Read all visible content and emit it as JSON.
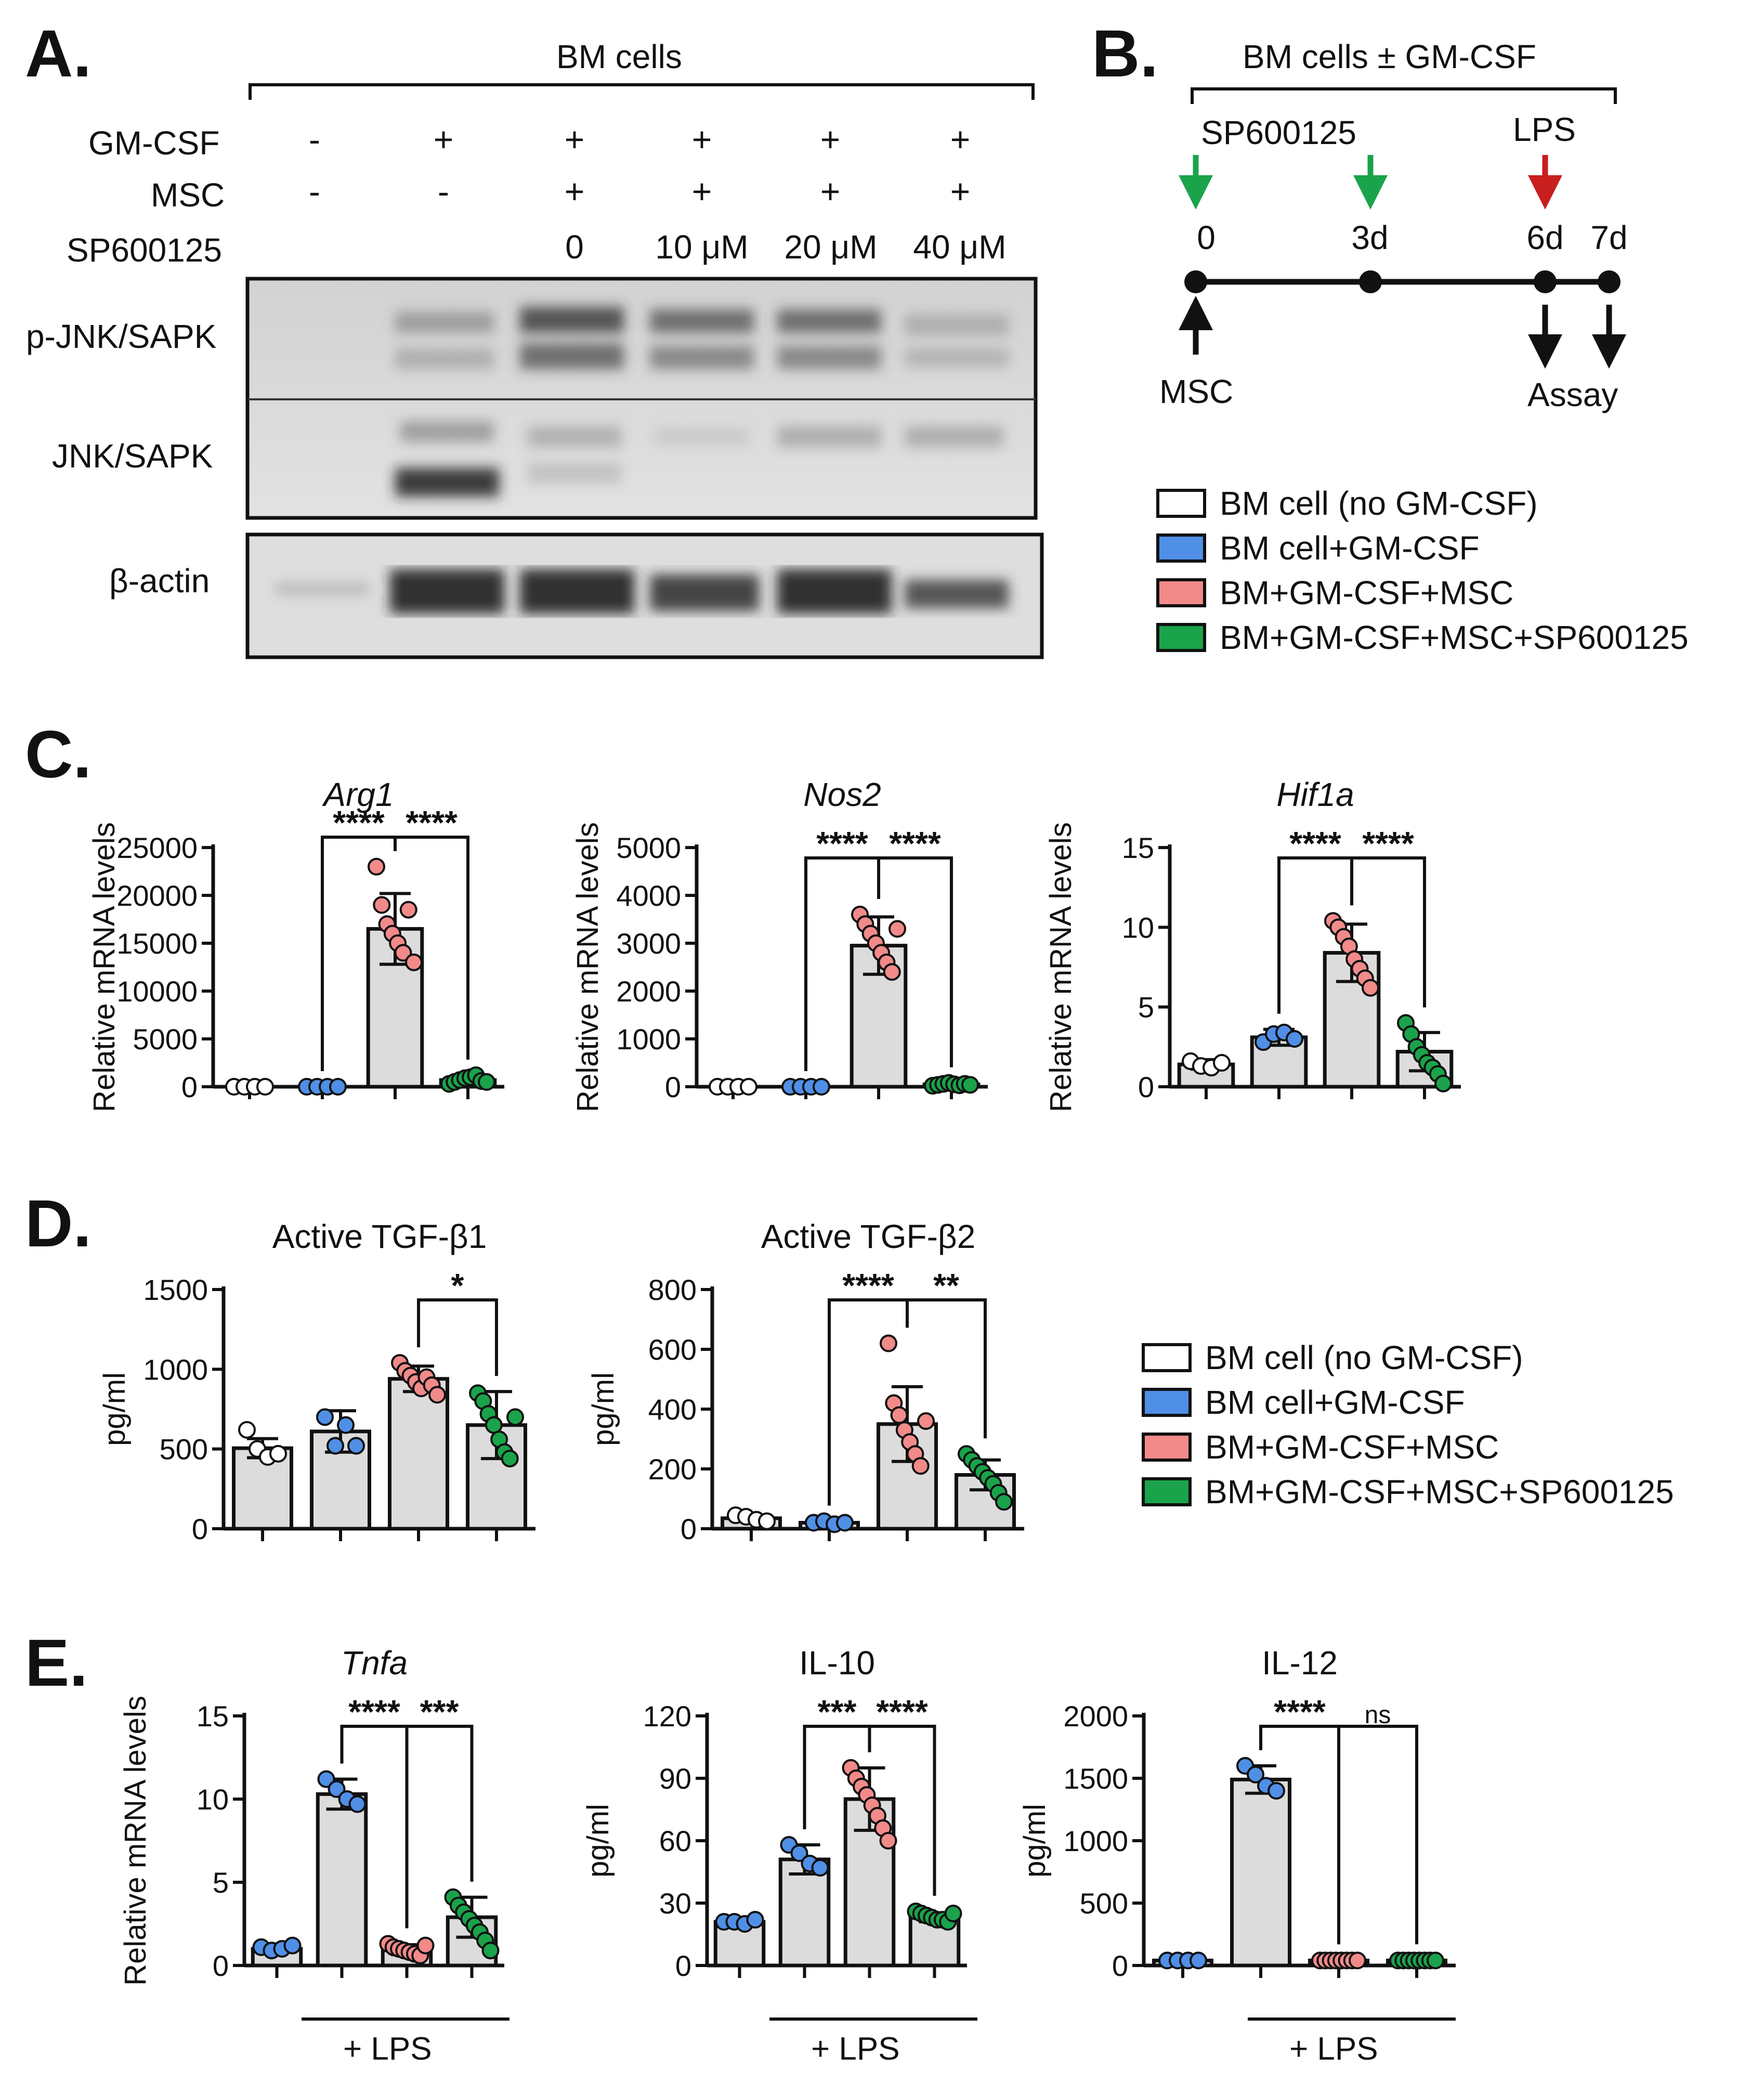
{
  "colors": {
    "group1": "#ffffff",
    "group2": "#4f8fe6",
    "group3": "#f28a8a",
    "group4": "#1aa34a",
    "bar_fill": "#dcdcdc",
    "arrow_green": "#1aa34a",
    "arrow_red": "#c81e1e"
  },
  "panel_a": {
    "label": "A.",
    "header": "BM cells",
    "rows": [
      {
        "name": "GM-CSF",
        "values": [
          "-",
          "+",
          "+",
          "+",
          "+",
          "+"
        ]
      },
      {
        "name": "MSC",
        "values": [
          "-",
          "-",
          "+",
          "+",
          "+",
          "+"
        ]
      },
      {
        "name": "SP600125",
        "values": [
          "",
          "",
          "0",
          "10 μM",
          "20 μM",
          "40 μM"
        ]
      }
    ],
    "blot_labels": [
      "p-JNK/SAPK",
      "JNK/SAPK",
      "β-actin"
    ]
  },
  "panel_b": {
    "label": "B.",
    "header": "BM cells ± GM-CSF",
    "sp_label": "SP600125",
    "lps_label": "LPS",
    "timepoints": [
      "0",
      "3d",
      "6d",
      "7d"
    ],
    "msc_label": "MSC",
    "assay_label": "Assay"
  },
  "legend": [
    "BM cell (no GM-CSF)",
    "BM cell+GM-CSF",
    "BM+GM-CSF+MSC",
    "BM+GM-CSF+MSC+SP600125"
  ],
  "panel_c": {
    "label": "C."
  },
  "panel_d": {
    "label": "D."
  },
  "panel_e": {
    "label": "E.",
    "lps_label": "+ LPS"
  },
  "chart_data": [
    {
      "id": "arg1",
      "type": "bar",
      "title": "Arg1",
      "title_italic": true,
      "ylabel": "Relative mRNA levels",
      "ylim": [
        0,
        25000
      ],
      "yticks": [
        0,
        5000,
        10000,
        15000,
        20000,
        25000
      ],
      "groups": [
        1,
        2,
        3,
        4
      ],
      "values": [
        0,
        0,
        16500,
        700
      ],
      "sd": [
        0,
        0,
        3700,
        300
      ],
      "points": [
        [
          0,
          0,
          0,
          0
        ],
        [
          0,
          0,
          0,
          0
        ],
        [
          23000,
          19000,
          17000,
          16000,
          15000,
          14000,
          18500,
          13000
        ],
        [
          300,
          500,
          700,
          900,
          1000,
          1200,
          600,
          500
        ]
      ],
      "sig": [
        {
          "from": 2,
          "to": 3,
          "label": "****"
        },
        {
          "from": 3,
          "to": 4,
          "label": "****"
        }
      ]
    },
    {
      "id": "nos2",
      "type": "bar",
      "title": "Nos2",
      "title_italic": true,
      "ylabel": "Relative mRNA levels",
      "ylim": [
        0,
        5000
      ],
      "yticks": [
        0,
        1000,
        2000,
        3000,
        4000,
        5000
      ],
      "groups": [
        1,
        2,
        3,
        4
      ],
      "values": [
        0,
        0,
        2950,
        50
      ],
      "sd": [
        0,
        0,
        600,
        30
      ],
      "points": [
        [
          0,
          0,
          0,
          0
        ],
        [
          0,
          0,
          0,
          0
        ],
        [
          3600,
          3400,
          3200,
          3000,
          2800,
          2600,
          2400,
          3300
        ],
        [
          20,
          40,
          60,
          80,
          50,
          30,
          60,
          40
        ]
      ],
      "sig": [
        {
          "from": 2,
          "to": 3,
          "label": "****"
        },
        {
          "from": 3,
          "to": 4,
          "label": "****"
        }
      ]
    },
    {
      "id": "hif1a",
      "type": "bar",
      "title": "Hif1a",
      "title_italic": true,
      "ylabel": "Relative mRNA levels",
      "ylim": [
        0,
        15
      ],
      "yticks": [
        0,
        5,
        10,
        15
      ],
      "groups": [
        1,
        2,
        3,
        4
      ],
      "values": [
        1.4,
        3.1,
        8.4,
        2.2
      ],
      "sd": [
        0.3,
        0.5,
        1.8,
        1.2
      ],
      "points": [
        [
          1.6,
          1.3,
          1.2,
          1.5
        ],
        [
          2.8,
          3.3,
          3.4,
          3.0
        ],
        [
          10.4,
          10.0,
          9.4,
          8.8,
          8.0,
          7.4,
          6.8,
          6.2
        ],
        [
          4.0,
          3.3,
          2.5,
          2.0,
          1.5,
          1.2,
          0.8,
          0.2
        ]
      ],
      "sig": [
        {
          "from": 2,
          "to": 3,
          "label": "****"
        },
        {
          "from": 3,
          "to": 4,
          "label": "****"
        }
      ]
    },
    {
      "id": "tgfb1",
      "type": "bar",
      "title": "Active TGF-β1",
      "title_italic": false,
      "ylabel": "pg/ml",
      "ylim": [
        0,
        1500
      ],
      "yticks": [
        0,
        500,
        1000,
        1500
      ],
      "groups": [
        1,
        2,
        3,
        4
      ],
      "values": [
        505,
        610,
        940,
        650
      ],
      "sd": [
        60,
        130,
        80,
        210
      ],
      "points": [
        [
          620,
          500,
          450,
          470
        ],
        [
          700,
          520,
          650,
          520
        ],
        [
          1040,
          990,
          960,
          920,
          880,
          950,
          900,
          840
        ],
        [
          850,
          800,
          720,
          650,
          560,
          480,
          440,
          700
        ]
      ],
      "sig": [
        {
          "from": 3,
          "to": 4,
          "label": "*"
        }
      ]
    },
    {
      "id": "tgfb2",
      "type": "bar",
      "title": "Active TGF-β2",
      "title_italic": false,
      "ylabel": "pg/ml",
      "ylim": [
        0,
        800
      ],
      "yticks": [
        0,
        200,
        400,
        600,
        800
      ],
      "groups": [
        1,
        2,
        3,
        4
      ],
      "values": [
        35,
        20,
        350,
        180
      ],
      "sd": [
        10,
        5,
        125,
        50
      ],
      "points": [
        [
          45,
          40,
          30,
          25
        ],
        [
          20,
          25,
          15,
          20
        ],
        [
          620,
          420,
          380,
          330,
          290,
          250,
          210,
          360
        ],
        [
          250,
          230,
          210,
          190,
          170,
          150,
          120,
          90
        ]
      ],
      "sig": [
        {
          "from": 2,
          "to": 3,
          "label": "****"
        },
        {
          "from": 3,
          "to": 4,
          "label": "**"
        }
      ]
    },
    {
      "id": "tnfa",
      "type": "bar",
      "title": "Tnfa",
      "title_italic": true,
      "ylabel": "Relative mRNA levels",
      "ylim": [
        0,
        15
      ],
      "yticks": [
        0,
        5,
        10,
        15
      ],
      "groups": [
        2,
        2,
        3,
        4
      ],
      "values": [
        1.0,
        10.3,
        0.95,
        2.9
      ],
      "sd": [
        0.2,
        0.9,
        0.3,
        1.2
      ],
      "points": [
        [
          1.1,
          0.9,
          1.0,
          1.2
        ],
        [
          11.2,
          10.6,
          10.0,
          9.7
        ],
        [
          1.3,
          1.1,
          1.0,
          0.9,
          0.8,
          0.7,
          0.6,
          1.2
        ],
        [
          4.1,
          3.6,
          3.2,
          2.8,
          2.4,
          2.0,
          1.5,
          0.9
        ]
      ],
      "sig": [
        {
          "from": 2,
          "to": 3,
          "label": "****"
        },
        {
          "from": 3,
          "to": 4,
          "label": "***"
        }
      ]
    },
    {
      "id": "il10",
      "type": "bar",
      "title": "IL-10",
      "title_italic": false,
      "ylabel": "pg/ml",
      "ylim": [
        0,
        120
      ],
      "yticks": [
        0,
        30,
        60,
        90,
        120
      ],
      "groups": [
        2,
        2,
        3,
        4
      ],
      "values": [
        21,
        51,
        80,
        23
      ],
      "sd": [
        1,
        7,
        15,
        2
      ],
      "points": [
        [
          21,
          21,
          20,
          22
        ],
        [
          58,
          54,
          49,
          47
        ],
        [
          95,
          90,
          86,
          82,
          77,
          72,
          66,
          60
        ],
        [
          26,
          25,
          24,
          23,
          22,
          22,
          21,
          25
        ]
      ],
      "sig": [
        {
          "from": 2,
          "to": 3,
          "label": "***"
        },
        {
          "from": 3,
          "to": 4,
          "label": "****"
        }
      ]
    },
    {
      "id": "il12",
      "type": "bar",
      "title": "IL-12",
      "title_italic": false,
      "ylabel": "pg/ml",
      "ylim": [
        0,
        2000
      ],
      "yticks": [
        0,
        500,
        1000,
        1500,
        2000
      ],
      "groups": [
        2,
        2,
        3,
        4
      ],
      "values": [
        40,
        1490,
        40,
        40
      ],
      "sd": [
        5,
        110,
        5,
        5
      ],
      "points": [
        [
          40,
          40,
          40,
          40
        ],
        [
          1600,
          1530,
          1440,
          1400
        ],
        [
          40,
          40,
          40,
          40,
          40,
          40,
          40,
          40
        ],
        [
          40,
          40,
          40,
          40,
          40,
          40,
          40,
          40
        ]
      ],
      "sig": [
        {
          "from": 2,
          "to": 3,
          "label": "****"
        },
        {
          "from": 3,
          "to": 4,
          "label": "ns"
        }
      ]
    }
  ]
}
